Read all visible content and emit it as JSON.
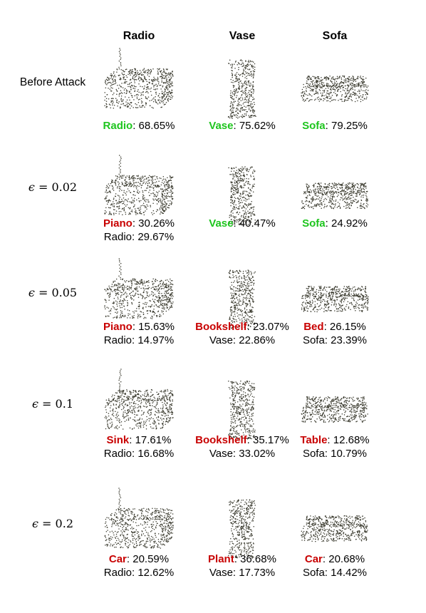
{
  "columns": [
    "Radio",
    "Vase",
    "Sofa"
  ],
  "rows": [
    {
      "label": "Before Attack",
      "is_epsilon": false,
      "cells": [
        {
          "obj": "radio",
          "line1": {
            "cls": "Radio",
            "status": "good",
            "pct": ": 68.65%"
          }
        },
        {
          "obj": "vase",
          "line1": {
            "cls": "Vase",
            "status": "good",
            "pct": ": 75.62%"
          }
        },
        {
          "obj": "sofa",
          "line1": {
            "cls": "Sofa",
            "status": "good",
            "pct": ": 79.25%"
          }
        }
      ]
    },
    {
      "label": "ϵ = 0.02",
      "eps_symbol": "ϵ",
      "eps_value": " = 0.02",
      "is_epsilon": true,
      "cells": [
        {
          "obj": "radio",
          "line1": {
            "cls": "Piano",
            "status": "bad",
            "pct": ": 30.26%"
          },
          "line2": "Radio: 29.67%"
        },
        {
          "obj": "vase",
          "line1": {
            "cls": "Vase",
            "status": "good",
            "pct": ": 40.47%"
          }
        },
        {
          "obj": "sofa",
          "line1": {
            "cls": "Sofa",
            "status": "good",
            "pct": ": 24.92%"
          }
        }
      ]
    },
    {
      "label": "ϵ = 0.05",
      "eps_symbol": "ϵ",
      "eps_value": " = 0.05",
      "is_epsilon": true,
      "cells": [
        {
          "obj": "radio",
          "line1": {
            "cls": "Piano",
            "status": "bad",
            "pct": ": 15.63%"
          },
          "line2": "Radio: 14.97%"
        },
        {
          "obj": "vase",
          "line1": {
            "cls": "Bookshelf",
            "status": "bad",
            "pct": ": 23.07%"
          },
          "line2": "Vase: 22.86%"
        },
        {
          "obj": "sofa",
          "line1": {
            "cls": "Bed",
            "status": "bad",
            "pct": ": 26.15%"
          },
          "line2": "Sofa: 23.39%"
        }
      ]
    },
    {
      "label": "ϵ = 0.1",
      "eps_symbol": "ϵ",
      "eps_value": " = 0.1",
      "is_epsilon": true,
      "cells": [
        {
          "obj": "radio",
          "line1": {
            "cls": "Sink",
            "status": "bad",
            "pct": ": 17.61%"
          },
          "line2": "Radio: 16.68%"
        },
        {
          "obj": "vase",
          "line1": {
            "cls": "Bookshelf",
            "status": "bad",
            "pct": ": 35.17%"
          },
          "line2": "Vase: 33.02%"
        },
        {
          "obj": "sofa",
          "line1": {
            "cls": "Table",
            "status": "bad",
            "pct": ": 12.68%"
          },
          "line2": "Sofa: 10.79%"
        }
      ]
    },
    {
      "label": "ϵ = 0.2",
      "eps_symbol": "ϵ",
      "eps_value": " = 0.2",
      "is_epsilon": true,
      "cells": [
        {
          "obj": "radio",
          "line1": {
            "cls": "Car",
            "status": "bad",
            "pct": ": 20.59%"
          },
          "line2": "Radio: 12.62%"
        },
        {
          "obj": "vase",
          "line1": {
            "cls": "Plant",
            "status": "bad",
            "pct": ": 36.68%"
          },
          "line2": "Vase: 17.73%"
        },
        {
          "obj": "sofa",
          "line1": {
            "cls": "Car",
            "status": "bad",
            "pct": ": 20.68%"
          },
          "line2": "Sofa: 14.42%"
        }
      ]
    }
  ],
  "colors": {
    "good": "#1ec51e",
    "bad": "#c80000",
    "points": "#3a3a2e"
  }
}
